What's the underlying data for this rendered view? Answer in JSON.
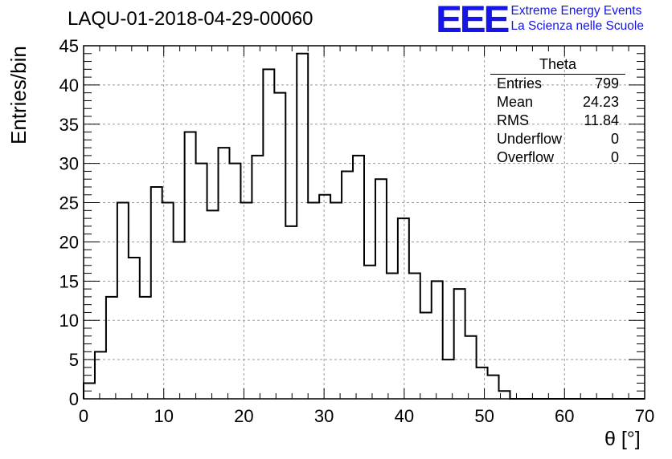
{
  "header": {
    "run_title": "LAQU-01-2018-04-29-00060"
  },
  "logo": {
    "mark": "EEE",
    "line1": "Extreme Energy Events",
    "line2": "La Scienza nelle Scuole"
  },
  "stats": {
    "title": "Theta",
    "rows": [
      {
        "label": "Entries",
        "value": "799"
      },
      {
        "label": "Mean",
        "value": "24.23"
      },
      {
        "label": "RMS",
        "value": "11.84"
      },
      {
        "label": "Underflow",
        "value": "0"
      },
      {
        "label": "Overflow",
        "value": "0"
      }
    ]
  },
  "chart_data": {
    "type": "histogram",
    "title": "LAQU-01-2018-04-29-00060",
    "xlabel": "θ [°]",
    "ylabel": "Entries/bin",
    "xlim": [
      0,
      70
    ],
    "ylim": [
      0,
      45
    ],
    "bin_width": 1.4,
    "xticks": [
      0,
      10,
      20,
      30,
      40,
      50,
      60,
      70
    ],
    "yticks": [
      0,
      5,
      10,
      15,
      20,
      25,
      30,
      35,
      40,
      45
    ],
    "grid": true,
    "bin_edges_start": 0,
    "values": [
      2,
      6,
      13,
      25,
      18,
      13,
      27,
      25,
      20,
      34,
      30,
      24,
      32,
      30,
      25,
      31,
      42,
      39,
      22,
      44,
      25,
      26,
      25,
      29,
      31,
      17,
      28,
      16,
      23,
      16,
      11,
      15,
      5,
      14,
      8,
      4,
      3,
      1,
      0,
      0,
      0,
      0,
      0,
      0,
      0,
      0,
      0,
      0,
      0,
      0
    ]
  }
}
